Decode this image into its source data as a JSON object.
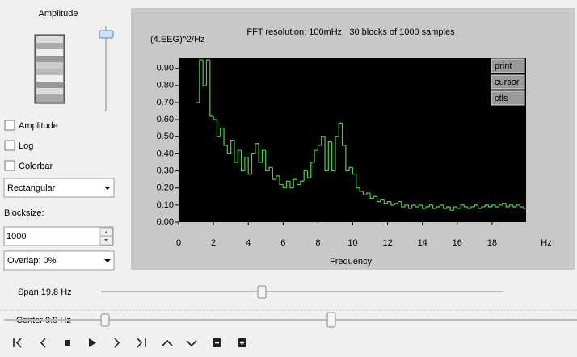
{
  "panel": {
    "title": "Amplitude",
    "checkboxes": [
      "Amplitude",
      "Log",
      "Colorbar"
    ],
    "window": "Rectangular",
    "blocksize_label": "Blocksize:",
    "blocksize": "1000",
    "overlap": "Overlap: 0%"
  },
  "buttons": [
    "print",
    "cursor",
    "ctls"
  ],
  "span": "Span 19.8 Hz",
  "center": "Center 9.9 Hz",
  "chart_data": {
    "type": "line",
    "step": true,
    "title": "FFT resolution: 100mHz   30 blocks of 1000 samples",
    "ylabel": "(4.EEG)^2/Hz",
    "xlabel": "Frequency",
    "x_unit": "Hz",
    "color": "#4ccf4c",
    "xlim": [
      0,
      20
    ],
    "ylim": [
      0,
      0.96
    ],
    "xticks": [
      0,
      2,
      4,
      6,
      8,
      10,
      12,
      14,
      16,
      18
    ],
    "yticks": [
      {
        "value": 0,
        "label": "0.00"
      },
      {
        "value": 0.1,
        "label": "0.10"
      },
      {
        "value": 0.2,
        "label": "0.20"
      },
      {
        "value": 0.3,
        "label": "0.30"
      },
      {
        "value": 0.4,
        "label": "0.40"
      },
      {
        "value": 0.5,
        "label": "0.50"
      },
      {
        "value": 0.6,
        "label": "0.60"
      },
      {
        "value": 0.7,
        "label": "0.70"
      },
      {
        "value": 0.8,
        "label": "0.80"
      },
      {
        "value": 0.9,
        "label": "0.90"
      }
    ],
    "x": [
      1,
      1.2,
      1.4,
      1.6,
      1.8,
      2,
      2.2,
      2.4,
      2.6,
      2.8,
      3,
      3.2,
      3.4,
      3.6,
      3.8,
      4,
      4.2,
      4.4,
      4.6,
      4.8,
      5,
      5.2,
      5.4,
      5.6,
      5.8,
      6,
      6.2,
      6.4,
      6.6,
      6.8,
      7,
      7.2,
      7.4,
      7.6,
      7.8,
      8,
      8.2,
      8.4,
      8.6,
      8.8,
      9,
      9.2,
      9.4,
      9.6,
      9.8,
      10,
      10.2,
      10.4,
      10.6,
      10.8,
      11,
      11.2,
      11.4,
      11.6,
      11.8,
      12,
      12.2,
      12.4,
      12.6,
      12.8,
      13,
      13.2,
      13.4,
      13.6,
      13.8,
      14,
      14.2,
      14.4,
      14.6,
      14.8,
      15,
      15.2,
      15.4,
      15.6,
      15.8,
      16,
      16.2,
      16.4,
      16.6,
      16.8,
      17,
      17.2,
      17.4,
      17.6,
      17.8,
      18,
      18.2,
      18.4,
      18.6,
      18.8,
      19,
      19.2,
      19.4,
      19.6,
      19.8
    ],
    "values": [
      0.7,
      0.95,
      0.8,
      0.95,
      0.62,
      0.6,
      0.5,
      0.55,
      0.45,
      0.4,
      0.48,
      0.35,
      0.42,
      0.3,
      0.38,
      0.28,
      0.4,
      0.46,
      0.35,
      0.42,
      0.3,
      0.32,
      0.25,
      0.27,
      0.22,
      0.2,
      0.24,
      0.2,
      0.25,
      0.22,
      0.24,
      0.3,
      0.26,
      0.35,
      0.42,
      0.45,
      0.5,
      0.3,
      0.47,
      0.3,
      0.5,
      0.58,
      0.45,
      0.3,
      0.32,
      0.28,
      0.2,
      0.18,
      0.16,
      0.17,
      0.14,
      0.15,
      0.12,
      0.13,
      0.11,
      0.12,
      0.1,
      0.11,
      0.12,
      0.09,
      0.1,
      0.08,
      0.1,
      0.09,
      0.1,
      0.08,
      0.09,
      0.1,
      0.08,
      0.09,
      0.1,
      0.08,
      0.09,
      0.07,
      0.09,
      0.08,
      0.1,
      0.09,
      0.08,
      0.09,
      0.1,
      0.08,
      0.09,
      0.1,
      0.09,
      0.1,
      0.09,
      0.1,
      0.11,
      0.09,
      0.1,
      0.09,
      0.1,
      0.09,
      0.08
    ]
  }
}
